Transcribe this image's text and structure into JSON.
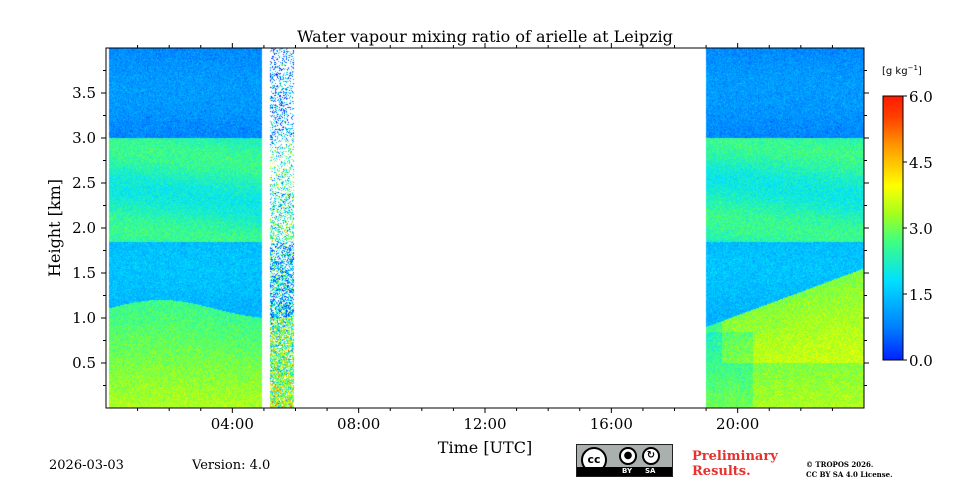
{
  "chart_data": {
    "type": "heatmap",
    "title": "Water vapour mixing ratio of arielle at Leipzig",
    "xlabel": "Time [UTC]",
    "ylabel": "Height [km]",
    "x_unit": "hours UTC",
    "xlim": [
      0,
      24
    ],
    "ylim": [
      0,
      4
    ],
    "x_ticks": [
      4,
      8,
      12,
      16,
      20
    ],
    "x_tick_labels": [
      "04:00",
      "08:00",
      "12:00",
      "16:00",
      "20:00"
    ],
    "y_ticks": [
      0.5,
      1.0,
      1.5,
      2.0,
      2.5,
      3.0,
      3.5
    ],
    "y_tick_labels": [
      "0.5",
      "1.0",
      "1.5",
      "2.0",
      "2.5",
      "3.0",
      "3.5"
    ],
    "colorbar": {
      "label": "[g kg$^{-1}$]",
      "label_text": "[g kg",
      "label_sup": "−1",
      "label_close": "]",
      "min": 0.0,
      "max": 6.0,
      "ticks": [
        0.0,
        1.5,
        3.0,
        4.5,
        6.0
      ],
      "tick_labels": [
        "0.0",
        "1.5",
        "3.0",
        "4.5",
        "6.0"
      ],
      "colormap": "jet"
    },
    "data_coverage": [
      {
        "start": 0.1,
        "end": 4.95,
        "description": "continuous measurement"
      },
      {
        "start": 5.2,
        "end": 5.95,
        "description": "noisy measurement fading out with height"
      },
      {
        "start": 19.0,
        "end": 24.0,
        "description": "continuous measurement"
      }
    ],
    "description": "Mixing ratio profile: 2.5-3.5 g/kg in the boundary layer below about 1.1 km, a drier layer near 1.2-1.8 km (1.5 g/kg), 2.2-3 g/kg between 2 and 3 km, and about 1 g/kg above 3 km. After 19 UTC the boundary layer rises to about 1.5 km with values up to 4 g/kg."
  },
  "footer": {
    "date": "2026-03-03",
    "version": "Version: 4.0",
    "preliminary_line1": "Preliminary",
    "preliminary_line2": "Results.",
    "copyright_line1": "© TROPOS 2026.",
    "copyright_line2": "CC BY SA 4.0 License.",
    "license_badge": {
      "cc": "cc",
      "by": "BY",
      "sa": "SA"
    }
  },
  "colors": {
    "preliminary": "#e8302c",
    "badge_background": "#aab0ad"
  }
}
